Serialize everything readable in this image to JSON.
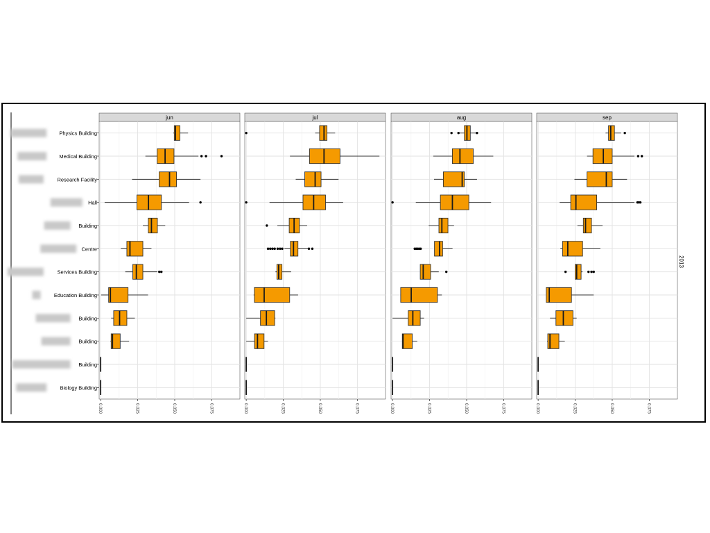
{
  "chart_data": {
    "type": "boxplot",
    "facet_row_label": "2013",
    "panels": [
      {
        "label": "jun"
      },
      {
        "label": "jul"
      },
      {
        "label": "aug"
      },
      {
        "label": "sep"
      }
    ],
    "categories": [
      "Physics Building",
      "Medical Building",
      "Research Facility",
      "Hall",
      "Building",
      "Centre",
      "Services Building",
      "Education Building",
      "Building",
      "Building",
      "Building",
      "Biology Building"
    ],
    "x_ticks": [
      "0.000",
      "0.025",
      "0.050",
      "0.075"
    ],
    "xlim": [
      -0.001,
      0.094
    ],
    "box_color": "#f59a00",
    "boxes": [
      [
        {
          "min": 0.049,
          "q1": 0.0497,
          "median": 0.0505,
          "q3": 0.0535,
          "max": 0.059,
          "outliers": []
        },
        {
          "min": 0.0302,
          "q1": 0.0382,
          "median": 0.0435,
          "q3": 0.0495,
          "max": 0.066,
          "outliers": [
            0.0681,
            0.0711,
            0.0816
          ]
        },
        {
          "min": 0.0212,
          "q1": 0.0395,
          "median": 0.0465,
          "q3": 0.0512,
          "max": 0.0674,
          "outliers": []
        },
        {
          "min": 0.0027,
          "q1": 0.0245,
          "median": 0.0323,
          "q3": 0.041,
          "max": 0.0597,
          "outliers": [
            0.0674
          ]
        },
        {
          "min": 0.0285,
          "q1": 0.0322,
          "median": 0.0343,
          "q3": 0.0383,
          "max": 0.0436,
          "outliers": []
        },
        {
          "min": 0.0136,
          "q1": 0.0177,
          "median": 0.0198,
          "q3": 0.0285,
          "max": 0.0343,
          "outliers": []
        },
        {
          "min": 0.0166,
          "q1": 0.0217,
          "median": 0.0241,
          "q3": 0.0285,
          "max": 0.0383,
          "outliers": [
            0.0396,
            0.041
          ]
        },
        {
          "min": 0.0004,
          "q1": 0.0054,
          "median": 0.0066,
          "q3": 0.0185,
          "max": 0.032,
          "outliers": []
        },
        {
          "min": 0.0071,
          "q1": 0.0088,
          "median": 0.0128,
          "q3": 0.0177,
          "max": 0.0231,
          "outliers": []
        },
        {
          "min": 0.0066,
          "q1": 0.0071,
          "median": 0.008,
          "q3": 0.0132,
          "max": 0.0192,
          "outliers": []
        },
        {
          "min": 0.0,
          "q1": 0.0,
          "median": 0.0,
          "q3": 0.0,
          "max": 0.0,
          "outliers": []
        },
        {
          "min": 0.0,
          "q1": 0.0,
          "median": 0.0,
          "q3": 0.0,
          "max": 0.0,
          "outliers": []
        }
      ],
      [
        {
          "min": 0.0465,
          "q1": 0.0495,
          "median": 0.0525,
          "q3": 0.0545,
          "max": 0.06,
          "outliers": [
            0.0
          ]
        },
        {
          "min": 0.0295,
          "q1": 0.0427,
          "median": 0.0525,
          "q3": 0.0633,
          "max": 0.0899,
          "outliers": []
        },
        {
          "min": 0.0334,
          "q1": 0.0395,
          "median": 0.0465,
          "q3": 0.0505,
          "max": 0.0623,
          "outliers": []
        },
        {
          "min": 0.0157,
          "q1": 0.0383,
          "median": 0.0455,
          "q3": 0.0535,
          "max": 0.0654,
          "outliers": [
            0.0
          ]
        },
        {
          "min": 0.021,
          "q1": 0.029,
          "median": 0.0323,
          "q3": 0.0359,
          "max": 0.0411,
          "outliers": [
            0.0139
          ]
        },
        {
          "min": 0.0258,
          "q1": 0.0298,
          "median": 0.0319,
          "q3": 0.0349,
          "max": 0.0426,
          "outliers": [
            0.0147,
            0.0162,
            0.0177,
            0.0192,
            0.0212,
            0.0228,
            0.0243,
            0.0423,
            0.0446
          ]
        },
        {
          "min": 0.0197,
          "q1": 0.0207,
          "median": 0.0219,
          "q3": 0.0241,
          "max": 0.0303,
          "outliers": []
        },
        {
          "min": 0.005,
          "q1": 0.0055,
          "median": 0.0121,
          "q3": 0.0293,
          "max": 0.035,
          "outliers": []
        },
        {
          "min": 0.0,
          "q1": 0.0096,
          "median": 0.0136,
          "q3": 0.0192,
          "max": 0.0197,
          "outliers": []
        },
        {
          "min": 0.0,
          "q1": 0.0056,
          "median": 0.0076,
          "q3": 0.012,
          "max": 0.0147,
          "outliers": []
        },
        {
          "min": 0.0,
          "q1": 0.0,
          "median": 0.0,
          "q3": 0.0,
          "max": 0.0,
          "outliers": []
        },
        {
          "min": 0.0,
          "q1": 0.0,
          "median": 0.0,
          "q3": 0.0,
          "max": 0.0,
          "outliers": []
        }
      ],
      [
        {
          "min": 0.0445,
          "q1": 0.0485,
          "median": 0.0502,
          "q3": 0.0525,
          "max": 0.057,
          "outliers": [
            0.0398,
            0.0445,
            0.057
          ]
        },
        {
          "min": 0.0275,
          "q1": 0.0404,
          "median": 0.0455,
          "q3": 0.0545,
          "max": 0.068,
          "outliers": []
        },
        {
          "min": 0.028,
          "q1": 0.0343,
          "median": 0.047,
          "q3": 0.0485,
          "max": 0.057,
          "outliers": []
        },
        {
          "min": 0.0157,
          "q1": 0.0323,
          "median": 0.0404,
          "q3": 0.0515,
          "max": 0.0665,
          "outliers": [
            0.0
          ]
        },
        {
          "min": 0.0244,
          "q1": 0.0313,
          "median": 0.0333,
          "q3": 0.0374,
          "max": 0.0415,
          "outliers": []
        },
        {
          "min": 0.0283,
          "q1": 0.0283,
          "median": 0.0318,
          "q3": 0.0338,
          "max": 0.0405,
          "outliers": [
            0.015,
            0.016,
            0.017,
            0.018,
            0.019
          ]
        },
        {
          "min": 0.0187,
          "q1": 0.0187,
          "median": 0.0207,
          "q3": 0.0257,
          "max": 0.0312,
          "outliers": [
            0.0363
          ]
        },
        {
          "min": 0.0055,
          "q1": 0.0055,
          "median": 0.0126,
          "q3": 0.0303,
          "max": 0.0333,
          "outliers": []
        },
        {
          "min": 0.0,
          "q1": 0.0106,
          "median": 0.0137,
          "q3": 0.0187,
          "max": 0.0213,
          "outliers": []
        },
        {
          "min": 0.0066,
          "q1": 0.0066,
          "median": 0.0071,
          "q3": 0.0133,
          "max": 0.0167,
          "outliers": []
        },
        {
          "min": 0.0,
          "q1": 0.0,
          "median": 0.0,
          "q3": 0.0,
          "max": 0.0,
          "outliers": []
        },
        {
          "min": 0.0,
          "q1": 0.0,
          "median": 0.0,
          "q3": 0.0,
          "max": 0.0,
          "outliers": []
        }
      ],
      [
        {
          "min": 0.0455,
          "q1": 0.0475,
          "median": 0.049,
          "q3": 0.0515,
          "max": 0.056,
          "outliers": [
            0.0585
          ]
        },
        {
          "min": 0.033,
          "q1": 0.037,
          "median": 0.044,
          "q3": 0.05,
          "max": 0.065,
          "outliers": [
            0.0675,
            0.07
          ]
        },
        {
          "min": 0.0245,
          "q1": 0.033,
          "median": 0.046,
          "q3": 0.05,
          "max": 0.06,
          "outliers": []
        },
        {
          "min": 0.0145,
          "q1": 0.022,
          "median": 0.0255,
          "q3": 0.0395,
          "max": 0.065,
          "outliers": [
            0.067,
            0.068,
            0.069
          ]
        },
        {
          "min": 0.0265,
          "q1": 0.0305,
          "median": 0.032,
          "q3": 0.036,
          "max": 0.0435,
          "outliers": []
        },
        {
          "min": 0.015,
          "q1": 0.0165,
          "median": 0.02,
          "q3": 0.03,
          "max": 0.042,
          "outliers": []
        },
        {
          "min": 0.025,
          "q1": 0.025,
          "median": 0.026,
          "q3": 0.029,
          "max": 0.03,
          "outliers": [
            0.0185,
            0.034,
            0.036,
            0.0375
          ]
        },
        {
          "min": 0.0055,
          "q1": 0.0055,
          "median": 0.0075,
          "q3": 0.0225,
          "max": 0.0375,
          "outliers": []
        },
        {
          "min": 0.008,
          "q1": 0.012,
          "median": 0.017,
          "q3": 0.0235,
          "max": 0.026,
          "outliers": []
        },
        {
          "min": 0.006,
          "q1": 0.0065,
          "median": 0.008,
          "q3": 0.014,
          "max": 0.018,
          "outliers": []
        },
        {
          "min": 0.0,
          "q1": 0.0,
          "median": 0.0,
          "q3": 0.0,
          "max": 0.0,
          "outliers": []
        },
        {
          "min": 0.0,
          "q1": 0.0,
          "median": 0.0,
          "q3": 0.0,
          "max": 0.0,
          "outliers": []
        }
      ]
    ]
  }
}
